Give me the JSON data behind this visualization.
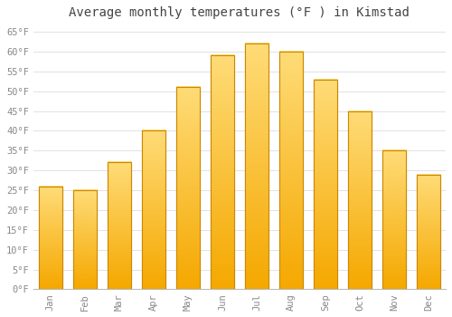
{
  "title": "Average monthly temperatures (°F ) in Kimstad",
  "months": [
    "Jan",
    "Feb",
    "Mar",
    "Apr",
    "May",
    "Jun",
    "Jul",
    "Aug",
    "Sep",
    "Oct",
    "Nov",
    "Dec"
  ],
  "values": [
    26,
    25,
    32,
    40,
    51,
    59,
    62,
    60,
    53,
    45,
    35,
    29
  ],
  "bar_color_bottom": "#F5A800",
  "bar_color_top": "#FFDD88",
  "bar_edge_color": "#CC8800",
  "background_color": "#FFFFFF",
  "grid_color": "#DDDDDD",
  "text_color": "#888888",
  "title_color": "#444444",
  "ylim": [
    0,
    67
  ],
  "yticks": [
    0,
    5,
    10,
    15,
    20,
    25,
    30,
    35,
    40,
    45,
    50,
    55,
    60,
    65
  ],
  "title_fontsize": 10,
  "tick_fontsize": 7.5,
  "font_family": "monospace",
  "bar_width": 0.7
}
